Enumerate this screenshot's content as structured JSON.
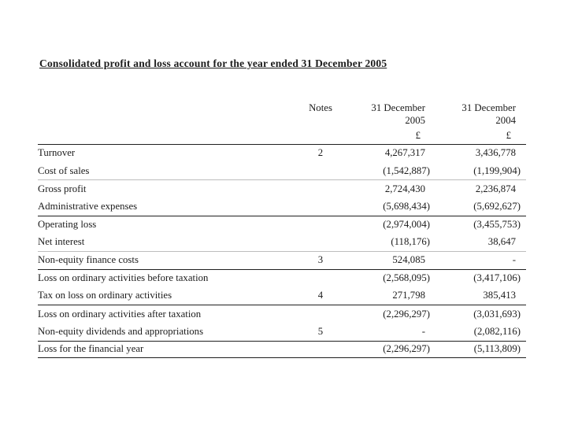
{
  "title": "Consolidated profit and loss account for the year ended 31 December 2005",
  "table": {
    "headers": {
      "notes": "Notes",
      "col2005_line1": "31 December",
      "col2005_line2": "2005",
      "col2004_line1": "31 December",
      "col2004_line2": "2004",
      "currency_symbol": "£"
    },
    "rows": [
      {
        "label": "Turnover",
        "note": "2",
        "v2005": "4,267,317",
        "v2004": "3,436,778",
        "rule_top": "none-strong"
      },
      {
        "label": "Cost of sales",
        "note": "",
        "v2005": "(1,542,887)",
        "v2004": "(1,199,904)",
        "rule_top": "none"
      },
      {
        "label": "Gross profit",
        "note": "",
        "v2005": "2,724,430",
        "v2004": "2,236,874",
        "rule_top": "faint"
      },
      {
        "label": "Administrative expenses",
        "note": "",
        "v2005": "(5,698,434)",
        "v2004": "(5,692,627)",
        "rule_top": "none"
      },
      {
        "label": "Operating loss",
        "note": "",
        "v2005": "(2,974,004)",
        "v2004": "(3,455,753)",
        "rule_top": "strong"
      },
      {
        "label": "Net interest",
        "note": "",
        "v2005": "(118,176)",
        "v2004": "38,647",
        "rule_top": "none"
      },
      {
        "label": "Non-equity finance costs",
        "note": "3",
        "v2005": "524,085",
        "v2004": "-",
        "rule_top": "faint"
      },
      {
        "label": "Loss on ordinary activities before taxation",
        "note": "",
        "v2005": "(2,568,095)",
        "v2004": "(3,417,106)",
        "rule_top": "strong"
      },
      {
        "label": "Tax on loss on ordinary activities",
        "note": "4",
        "v2005": "271,798",
        "v2004": "385,413",
        "rule_top": "none"
      },
      {
        "label": "Loss on ordinary activities after taxation",
        "note": "",
        "v2005": "(2,296,297)",
        "v2004": "(3,031,693)",
        "rule_top": "strong"
      },
      {
        "label": "Non-equity dividends and appropriations",
        "note": "5",
        "v2005": "-",
        "v2004": "(2,082,116)",
        "rule_top": "none"
      },
      {
        "label": "Loss for the financial year",
        "note": "",
        "v2005": "(2,296,297)",
        "v2004": "(5,113,809)",
        "rule_top": "strong",
        "rule_bottom": "strong"
      }
    ]
  },
  "colors": {
    "background": "#ffffff",
    "text": "#1c1c1c",
    "rule_strong": "#1f1f1f",
    "rule_faint": "#bdbdbd"
  }
}
